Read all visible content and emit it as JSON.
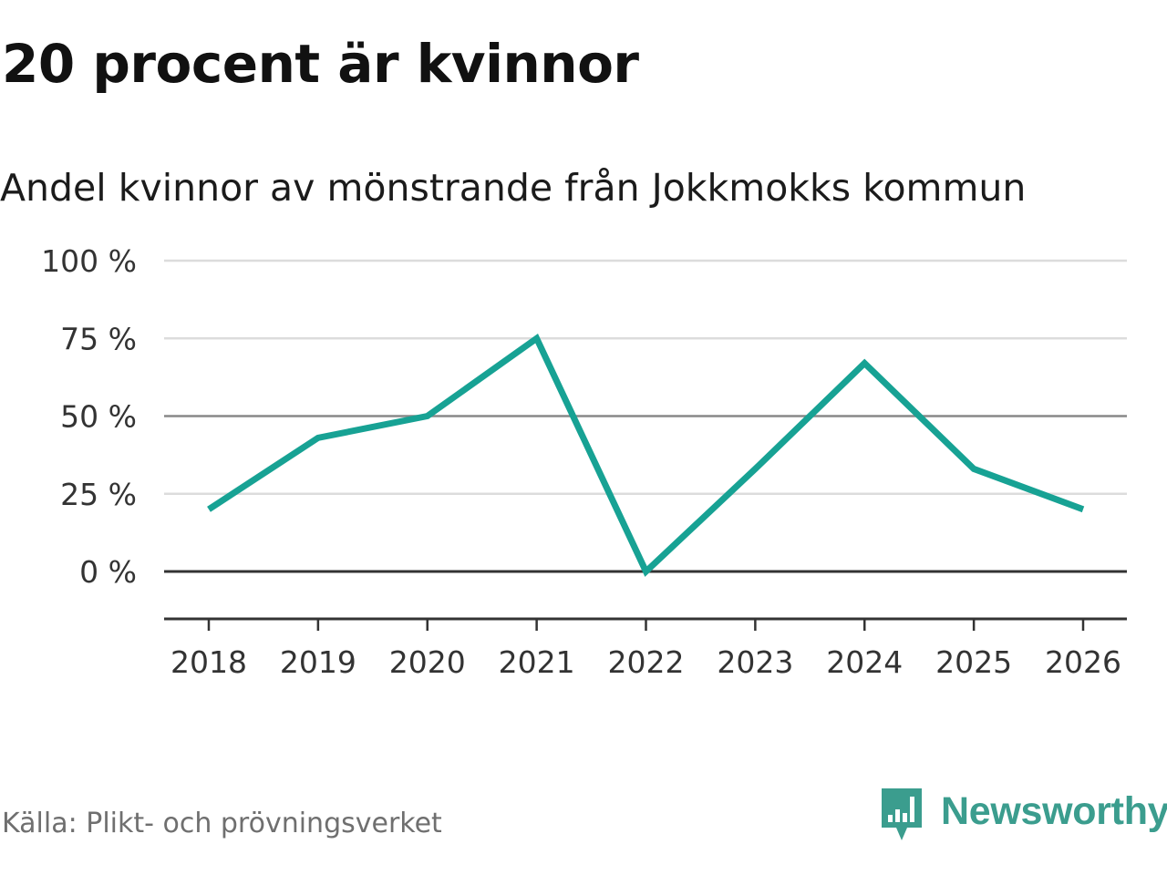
{
  "header": {
    "title": "20 procent är kvinnor",
    "subtitle": "Andel kvinnor av mönstrande från Jokkmokks kommun"
  },
  "footer": {
    "source": "Källa: Plikt- och prövningsverket",
    "brand": "Newsworthy",
    "brand_icon": "bar-chart-speech-bubble-icon"
  },
  "colors": {
    "line": "#17a294",
    "brand": "#3b9d8e",
    "grid": "#dcdcdc",
    "grid_major": "#888888",
    "zero_line": "#333333"
  },
  "chart_data": {
    "type": "line",
    "title": "20 procent är kvinnor",
    "subtitle": "Andel kvinnor av mönstrande från Jokkmokks kommun",
    "xlabel": "",
    "ylabel": "",
    "x": [
      "2018",
      "2019",
      "2020",
      "2021",
      "2022",
      "2023",
      "2024",
      "2025",
      "2026"
    ],
    "series": [
      {
        "name": "Andel kvinnor",
        "values": [
          20,
          43,
          50,
          75,
          0,
          33,
          67,
          33,
          20
        ]
      }
    ],
    "ylim": [
      -15,
      100
    ],
    "yticks": [
      0,
      25,
      50,
      75,
      100
    ],
    "ytick_labels": [
      "0 %",
      "25 %",
      "50 %",
      "75 %",
      "100 %"
    ],
    "grid": true,
    "legend": "none"
  }
}
